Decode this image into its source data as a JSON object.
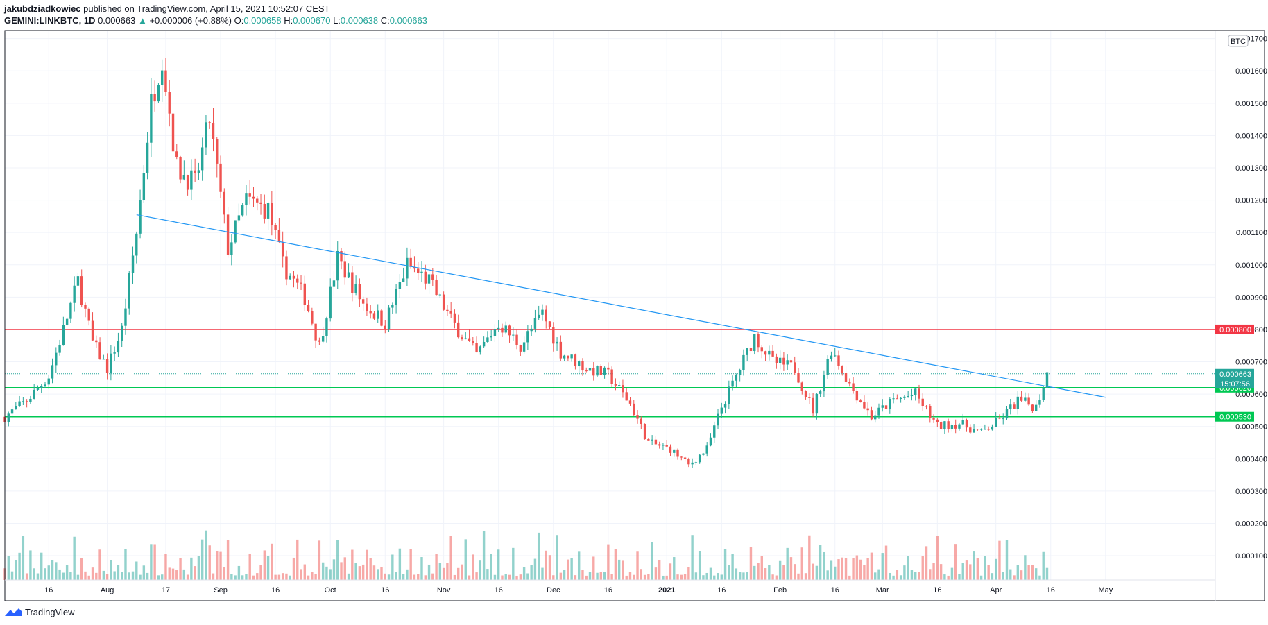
{
  "header": {
    "author": "jakubdziadkowiec",
    "published": " published on TradingView.com, April 15, 2021 10:52:07 CEST",
    "symbol": "GEMINI:LINKBTC, 1D",
    "last": "0.000663",
    "change": "+0.000006 (+0.88%)",
    "o_label": "O:",
    "o": "0.000658",
    "h_label": "H:",
    "h": "0.000670",
    "l_label": "L:",
    "l": "0.000638",
    "c_label": "C:",
    "c": "0.000663"
  },
  "footer": {
    "brand": "TradingView"
  },
  "colors": {
    "up": "#26a69a",
    "down": "#ef5350",
    "trend": "#2196f3",
    "resistance": "#f23645",
    "support": "#00c853"
  },
  "chart_data": {
    "type": "candlestick",
    "currency_badge": "BTC",
    "y_ticks": [
      "0.001700",
      "0.001600",
      "0.001500",
      "0.001400",
      "0.001300",
      "0.001200",
      "0.001100",
      "0.001000",
      "0.000900",
      "0.000800",
      "0.000700",
      "0.000600",
      "0.000500",
      "0.000400",
      "0.000300",
      "0.000200",
      "0.000100"
    ],
    "ylim": [
      2.5e-05,
      0.001725
    ],
    "x_ticks": [
      "16",
      "Aug",
      "17",
      "Sep",
      "16",
      "Oct",
      "16",
      "Nov",
      "16",
      "Dec",
      "16",
      "2021",
      "16",
      "Feb",
      "16",
      "Mar",
      "16",
      "Apr",
      "16",
      "May"
    ],
    "x_tick_dates": [
      "2020-07-16",
      "2020-08-01",
      "2020-08-17",
      "2020-09-01",
      "2020-09-16",
      "2020-10-01",
      "2020-10-16",
      "2020-11-01",
      "2020-11-16",
      "2020-12-01",
      "2020-12-16",
      "2021-01-01",
      "2021-01-16",
      "2021-02-01",
      "2021-02-16",
      "2021-03-01",
      "2021-03-16",
      "2021-04-01",
      "2021-04-16",
      "2021-05-01"
    ],
    "date_range": [
      "2020-07-04",
      "2021-05-31"
    ],
    "horizontal_levels": [
      {
        "value": 0.0008,
        "label": "0.000800",
        "color": "#f23645"
      },
      {
        "value": 0.00062,
        "label": "0.000620",
        "color": "#00c853"
      },
      {
        "value": 0.00053,
        "label": "0.000530",
        "color": "#00c853"
      }
    ],
    "current_price": {
      "value": 0.000663,
      "label": "0.000663",
      "countdown": "15:07:56"
    },
    "trendline": {
      "start": [
        "2020-08-09",
        0.001155
      ],
      "end": [
        "2021-05-01",
        0.00059
      ]
    },
    "key_points": [
      [
        "2020-07-04",
        0.00053
      ],
      [
        "2020-07-10",
        0.00058
      ],
      [
        "2020-07-16",
        0.000655
      ],
      [
        "2020-07-20",
        0.0008
      ],
      [
        "2020-07-24",
        0.00095
      ],
      [
        "2020-07-28",
        0.00076
      ],
      [
        "2020-08-01",
        0.00068
      ],
      [
        "2020-08-05",
        0.0008
      ],
      [
        "2020-08-09",
        0.0011
      ],
      [
        "2020-08-13",
        0.0015
      ],
      [
        "2020-08-16",
        0.00165
      ],
      [
        "2020-08-20",
        0.0013
      ],
      [
        "2020-08-25",
        0.00125
      ],
      [
        "2020-08-29",
        0.00145
      ],
      [
        "2020-09-03",
        0.00105
      ],
      [
        "2020-09-08",
        0.0012
      ],
      [
        "2020-09-14",
        0.00117
      ],
      [
        "2020-09-18",
        0.001
      ],
      [
        "2020-09-24",
        0.0009
      ],
      [
        "2020-09-28",
        0.00075
      ],
      [
        "2020-10-03",
        0.00102
      ],
      [
        "2020-10-10",
        0.00088
      ],
      [
        "2020-10-16",
        0.00082
      ],
      [
        "2020-10-22",
        0.001
      ],
      [
        "2020-10-28",
        0.00095
      ],
      [
        "2020-11-03",
        0.00083
      ],
      [
        "2020-11-10",
        0.00072
      ],
      [
        "2020-11-16",
        0.00082
      ],
      [
        "2020-11-22",
        0.00075
      ],
      [
        "2020-11-28",
        0.00085
      ],
      [
        "2020-12-03",
        0.00073
      ],
      [
        "2020-12-10",
        0.00068
      ],
      [
        "2020-12-16",
        0.00066
      ],
      [
        "2020-12-22",
        0.00057
      ],
      [
        "2020-12-27",
        0.00045
      ],
      [
        "2021-01-02",
        0.00043
      ],
      [
        "2021-01-07",
        0.00038
      ],
      [
        "2021-01-12",
        0.00043
      ],
      [
        "2021-01-16",
        0.00056
      ],
      [
        "2021-01-21",
        0.00068
      ],
      [
        "2021-01-25",
        0.00078
      ],
      [
        "2021-01-30",
        0.0007
      ],
      [
        "2021-02-05",
        0.00068
      ],
      [
        "2021-02-10",
        0.00055
      ],
      [
        "2021-02-15",
        0.00074
      ],
      [
        "2021-02-20",
        0.00063
      ],
      [
        "2021-02-26",
        0.00053
      ],
      [
        "2021-03-04",
        0.00058
      ],
      [
        "2021-03-10",
        0.0006
      ],
      [
        "2021-03-16",
        0.0005
      ],
      [
        "2021-03-22",
        0.00051
      ],
      [
        "2021-03-28",
        0.00048
      ],
      [
        "2021-04-02",
        0.00052
      ],
      [
        "2021-04-07",
        0.00058
      ],
      [
        "2021-04-12",
        0.00056
      ],
      [
        "2021-04-15",
        0.000663
      ]
    ]
  }
}
